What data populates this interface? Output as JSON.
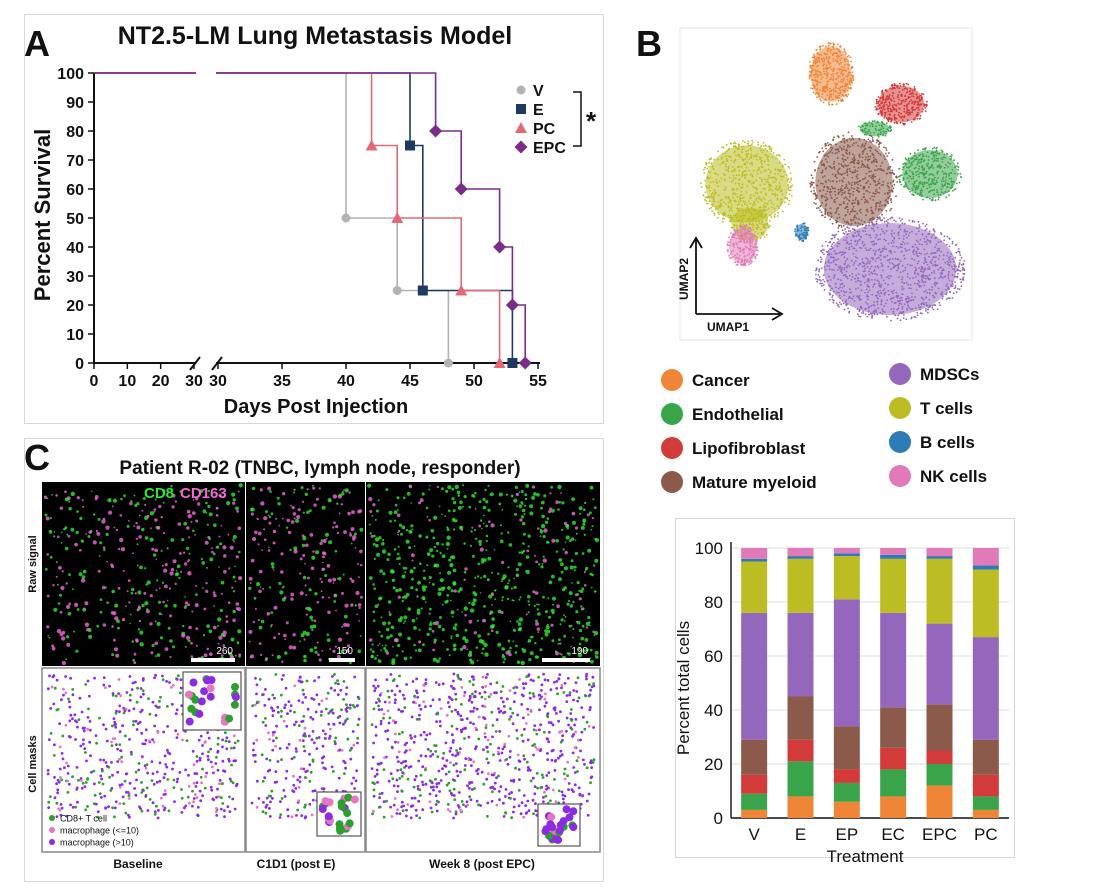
{
  "panel_letters": {
    "a": "A",
    "b": "B",
    "c": "C"
  },
  "survival": {
    "title": "NT2.5-LM Lung Metastasis Model",
    "xlabel": "Days Post Injection",
    "ylabel": "Percent Survival",
    "significance": "*",
    "x_ticks_left": [
      "0",
      "10",
      "20",
      "30"
    ],
    "x_ticks_right": [
      "30",
      "35",
      "40",
      "45",
      "50",
      "55"
    ],
    "y_ticks": [
      "0",
      "10",
      "20",
      "30",
      "40",
      "50",
      "60",
      "70",
      "80",
      "90",
      "100"
    ]
  },
  "umap": {
    "xlabel": "UMAP1",
    "ylabel": "UMAP2",
    "legend": [
      {
        "label": "Cancer",
        "color": "#ef8536"
      },
      {
        "label": "Endothelial",
        "color": "#3aa44a"
      },
      {
        "label": "Lipofibroblast",
        "color": "#d33a3a"
      },
      {
        "label": "Mature myeloid",
        "color": "#8b5a4a"
      },
      {
        "label": "MDSCs",
        "color": "#9467bd"
      },
      {
        "label": "T cells",
        "color": "#bcbd22"
      },
      {
        "label": "B cells",
        "color": "#2e7bb5"
      },
      {
        "label": "NK cells",
        "color": "#e07ab8"
      }
    ]
  },
  "imaging": {
    "title": "Patient R-02 (TNBC, lymph node, responder)",
    "channel_cd8": "CD8",
    "channel_cd163": "CD163",
    "row_raw": "Raw signal",
    "row_masks": "Cell masks",
    "scalebars": [
      "260",
      "150",
      "190"
    ],
    "timepoints": [
      "Baseline",
      "C1D1 (post E)",
      "Week 8 (post EPC)"
    ],
    "mask_legend": [
      {
        "label": "CD8+ T cell",
        "color": "#2ca02c"
      },
      {
        "label": "macrophage (<=10)",
        "color": "#e377c2"
      },
      {
        "label": "macrophage (>10)",
        "color": "#8c2be2"
      }
    ],
    "colors": {
      "cd8": "#33e633",
      "cd163": "#f06ad8"
    }
  },
  "chart_data": [
    {
      "type": "line",
      "subtype": "kaplan-meier step",
      "title": "NT2.5-LM Lung Metastasis Model",
      "xlabel": "Days Post Injection",
      "ylabel": "Percent Survival",
      "xlim": [
        0,
        55
      ],
      "axis_break": [
        30,
        30
      ],
      "ylim": [
        0,
        100
      ],
      "series": [
        {
          "name": "V",
          "color": "#b3b3b3",
          "marker": "circle",
          "steps": [
            [
              0,
              100
            ],
            [
              40,
              50
            ],
            [
              44,
              25
            ],
            [
              48,
              0
            ]
          ]
        },
        {
          "name": "E",
          "color": "#1f3a5f",
          "marker": "square",
          "steps": [
            [
              0,
              100
            ],
            [
              45,
              75
            ],
            [
              46,
              25
            ],
            [
              53,
              0
            ]
          ]
        },
        {
          "name": "PC",
          "color": "#e36a75",
          "marker": "triangle",
          "steps": [
            [
              0,
              100
            ],
            [
              42,
              75
            ],
            [
              44,
              50
            ],
            [
              49,
              25
            ],
            [
              52,
              0
            ]
          ]
        },
        {
          "name": "EPC",
          "color": "#7b2c8a",
          "marker": "diamond",
          "steps": [
            [
              0,
              100
            ],
            [
              47,
              80
            ],
            [
              49,
              60
            ],
            [
              52,
              40
            ],
            [
              53,
              20
            ],
            [
              54,
              0
            ]
          ]
        }
      ]
    },
    {
      "type": "bar",
      "subtype": "stacked",
      "xlabel": "Treatment",
      "ylabel": "Percent total cells",
      "ylim": [
        0,
        100
      ],
      "y_ticks": [
        "0",
        "20",
        "40",
        "60",
        "80",
        "100"
      ],
      "grid": true,
      "categories": [
        "V",
        "E",
        "EP",
        "EC",
        "EPC",
        "PC"
      ],
      "series": [
        {
          "name": "Cancer",
          "color": "#ef8536",
          "values": [
            3,
            8,
            6,
            8,
            12,
            3
          ]
        },
        {
          "name": "Endothelial",
          "color": "#3aa44a",
          "values": [
            6,
            13,
            7,
            10,
            8,
            5
          ]
        },
        {
          "name": "Lipofibroblast",
          "color": "#d33a3a",
          "values": [
            7,
            8,
            5,
            8,
            5,
            8
          ]
        },
        {
          "name": "Mature myeloid",
          "color": "#8b5a4a",
          "values": [
            13,
            16,
            16,
            15,
            17,
            13
          ]
        },
        {
          "name": "MDSCs",
          "color": "#9467bd",
          "values": [
            47,
            31,
            47,
            35,
            30,
            38
          ]
        },
        {
          "name": "T cells",
          "color": "#bcbd22",
          "values": [
            19,
            20,
            16,
            20,
            24,
            25
          ]
        },
        {
          "name": "B cells",
          "color": "#2e7bb5",
          "values": [
            1,
            1,
            1,
            1.5,
            1,
            1.5
          ]
        },
        {
          "name": "NK cells",
          "color": "#e07ab8",
          "values": [
            4,
            3,
            2,
            2.5,
            3,
            6.5
          ]
        }
      ]
    }
  ]
}
